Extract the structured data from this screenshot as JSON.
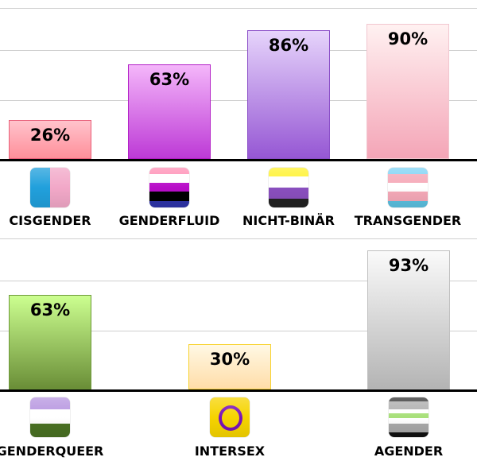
{
  "chart_data": [
    {
      "type": "bar",
      "ylim": [
        0,
        100
      ],
      "grid": true,
      "categories": [
        "CISGENDER",
        "GENDERFLUID",
        "NICHT-BINÄR",
        "TRANSGENDER"
      ],
      "values": [
        26,
        63,
        86,
        90
      ],
      "value_labels": [
        "26%",
        "63%",
        "86%",
        "90%"
      ],
      "bar_colors": [
        [
          "#ffc3cc",
          "#ff8f9a",
          "#e8607a"
        ],
        [
          "#f4b6fa",
          "#bd3ad6",
          "#b21fc6"
        ],
        [
          "#e6d4fb",
          "#9657d4",
          "#8b4fc8"
        ],
        [
          "#fff1f1",
          "#f4a5b7",
          "#f1c6cf"
        ]
      ],
      "icons": [
        "cisgender-flag-icon",
        "genderfluid-flag-icon",
        "nonbinary-flag-icon",
        "transgender-flag-icon"
      ]
    },
    {
      "type": "bar",
      "ylim": [
        0,
        100
      ],
      "grid": true,
      "categories": [
        "GENDERQUEER",
        "INTERSEX",
        "AGENDER"
      ],
      "values": [
        63,
        30,
        93
      ],
      "value_labels": [
        "63%",
        "30%",
        "93%"
      ],
      "bar_colors": [
        [
          "#ccff90",
          "#6a8e37",
          "#6e9a3a"
        ],
        [
          "#fff8e4",
          "#ffdda8",
          "#f7d22e"
        ],
        [
          "#fafafa",
          "#b4b4b4",
          "#c0c0c0"
        ]
      ],
      "icons": [
        "genderqueer-flag-icon",
        "intersex-flag-icon",
        "agender-flag-icon"
      ]
    }
  ]
}
